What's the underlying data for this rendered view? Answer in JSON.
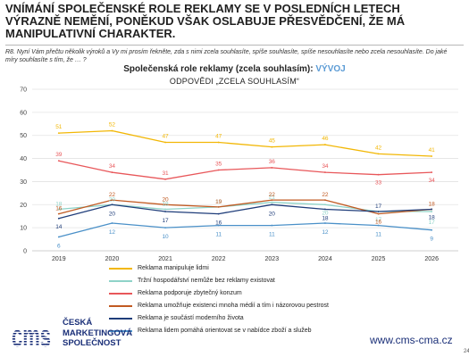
{
  "slide": {
    "title": "Vnímání společenské role reklamy se v posledních letech výrazně nemění, poněkud však oslabuje přesvědčení, že má manipulativní charakter.",
    "question": "R8. Nyní Vám přečtu několik výroků a Vy mi prosím řekněte, zda s nimi zcela souhlasíte, spíše souhlasíte, spíše nesouhlasíte nebo zcela nesouhlasíte. Do jaké míry souhlasíte s tím, že … ?",
    "chart_title": "Společenská role reklamy (zcela souhlasím):",
    "chart_title_accent": "VÝVOJ",
    "chart_subtitle": "ODPOVĚDI „ZCELA SOUHLASÍM“",
    "website": "www.cms-cma.cz",
    "page_number": "24",
    "logo_lines": [
      "ČESKÁ",
      "MARKETINGOVÁ",
      "SPOLEČNOST"
    ],
    "logo_mark_text": "cms"
  },
  "colors": {
    "title_accent": "#5b9bd5",
    "brand": "#1a2f78"
  },
  "chart_data": {
    "type": "line",
    "x": [
      "2019",
      "2020",
      "2021",
      "2022",
      "2023",
      "2024",
      "2025",
      "2026"
    ],
    "ylim": [
      0,
      70
    ],
    "yticks": [
      0,
      10,
      20,
      30,
      40,
      50,
      60,
      70
    ],
    "grid": true,
    "legend_position": "bottom",
    "series": [
      {
        "name": "Reklama manipuluje lidmi",
        "color": "#f2b705",
        "values": [
          51,
          52,
          47,
          47,
          45,
          46,
          42,
          41
        ]
      },
      {
        "name": "Tržní hospodářství nemůže bez reklamy existovat",
        "color": "#8fd3c8",
        "values": [
          18,
          20,
          18,
          19,
          21,
          20,
          17,
          17
        ]
      },
      {
        "name": "Reklama podporuje zbytečný konzum",
        "color": "#e8575a",
        "values": [
          39,
          34,
          31,
          35,
          36,
          34,
          33,
          34
        ]
      },
      {
        "name": "Reklama umožňuje existenci mnoha médií a tím i názorovou pestrost",
        "color": "#c15a22",
        "values": [
          16,
          22,
          20,
          19,
          22,
          22,
          16,
          18
        ]
      },
      {
        "name": "Reklama je součástí moderního života",
        "color": "#1f3d7a",
        "values": [
          14,
          20,
          17,
          16,
          20,
          18,
          17,
          18
        ]
      },
      {
        "name": "Reklama lidem pomáhá orientovat se v nabídce zboží a služeb",
        "color": "#4a90c8",
        "values": [
          6,
          12,
          10,
          11,
          11,
          12,
          11,
          9
        ]
      }
    ]
  }
}
